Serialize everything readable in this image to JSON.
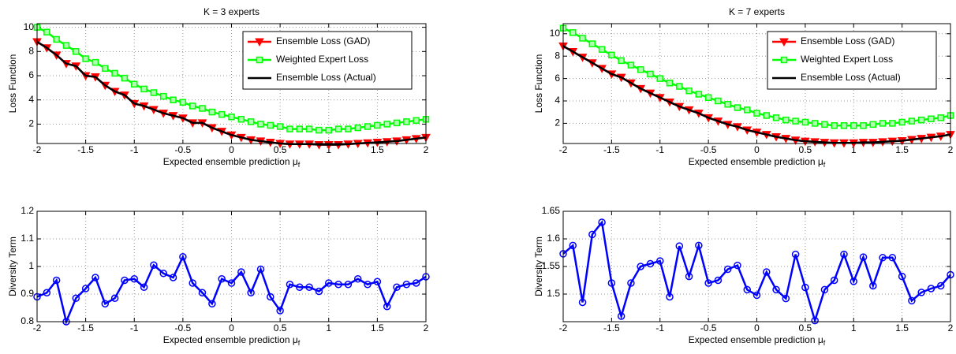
{
  "chart_data": [
    {
      "type": "line",
      "title": "K = 3 experts",
      "xlabel": [
        "Expected ensemble prediction μ",
        "f"
      ],
      "ylabel": "Loss Function",
      "xlim": [
        -2,
        2
      ],
      "ylim": [
        0.4,
        10.3
      ],
      "xticks": [
        -2,
        -1.5,
        -1,
        -0.5,
        0,
        0.5,
        1,
        1.5,
        2
      ],
      "yticks": [
        2,
        4,
        6,
        8,
        10
      ],
      "grid": true,
      "legend": "upper right",
      "x": [
        -2,
        -1.9,
        -1.8,
        -1.7,
        -1.6,
        -1.5,
        -1.4,
        -1.3,
        -1.2,
        -1.1,
        -1,
        -0.9,
        -0.8,
        -0.7,
        -0.6,
        -0.5,
        -0.4,
        -0.3,
        -0.2,
        -0.1,
        0,
        0.1,
        0.2,
        0.3,
        0.4,
        0.5,
        0.6,
        0.7,
        0.8,
        0.9,
        1,
        1.1,
        1.2,
        1.3,
        1.4,
        1.5,
        1.6,
        1.7,
        1.8,
        1.9,
        2
      ],
      "series": [
        {
          "name": "Ensemble Loss (GAD)",
          "color": "#ff0000",
          "marker": "v",
          "values": [
            8.8,
            8.3,
            7.7,
            7.0,
            6.8,
            6.0,
            5.9,
            5.2,
            4.7,
            4.4,
            3.7,
            3.5,
            3.2,
            2.9,
            2.7,
            2.5,
            2.1,
            2.1,
            1.7,
            1.4,
            1.1,
            0.9,
            0.7,
            0.6,
            0.5,
            0.4,
            0.35,
            0.35,
            0.35,
            0.3,
            0.3,
            0.3,
            0.35,
            0.4,
            0.45,
            0.5,
            0.55,
            0.6,
            0.7,
            0.8,
            0.9
          ]
        },
        {
          "name": "Weighted Expert Loss",
          "color": "#00ff00",
          "marker": "s",
          "values": [
            10,
            9.6,
            9.0,
            8.5,
            8.0,
            7.4,
            7.1,
            6.6,
            6.2,
            5.8,
            5.3,
            4.9,
            4.6,
            4.3,
            4.0,
            3.8,
            3.5,
            3.3,
            3.0,
            2.8,
            2.6,
            2.4,
            2.2,
            2.0,
            1.9,
            1.8,
            1.6,
            1.6,
            1.6,
            1.5,
            1.5,
            1.6,
            1.6,
            1.7,
            1.8,
            1.9,
            2.0,
            2.1,
            2.2,
            2.3,
            2.4
          ]
        },
        {
          "name": "Ensemble Loss (Actual)",
          "color": "#000000",
          "marker": "none",
          "values": [
            8.8,
            8.3,
            7.7,
            7.0,
            6.8,
            6.0,
            5.9,
            5.2,
            4.7,
            4.4,
            3.7,
            3.5,
            3.2,
            2.9,
            2.7,
            2.5,
            2.1,
            2.1,
            1.7,
            1.4,
            1.1,
            0.9,
            0.7,
            0.6,
            0.5,
            0.4,
            0.35,
            0.35,
            0.35,
            0.3,
            0.3,
            0.3,
            0.35,
            0.4,
            0.45,
            0.5,
            0.55,
            0.6,
            0.7,
            0.8,
            0.9
          ]
        }
      ]
    },
    {
      "type": "line",
      "title": "K = 7 experts",
      "xlabel": [
        "Expected ensemble prediction μ",
        "f"
      ],
      "ylabel": "Loss Function",
      "xlim": [
        -2,
        2
      ],
      "ylim": [
        0.2,
        10.9
      ],
      "xticks": [
        -2,
        -1.5,
        -1,
        -0.5,
        0,
        0.5,
        1,
        1.5,
        2
      ],
      "yticks": [
        2,
        4,
        6,
        8,
        10
      ],
      "grid": true,
      "legend": "upper right",
      "x": [
        -2,
        -1.9,
        -1.8,
        -1.7,
        -1.6,
        -1.5,
        -1.4,
        -1.3,
        -1.2,
        -1.1,
        -1,
        -0.9,
        -0.8,
        -0.7,
        -0.6,
        -0.5,
        -0.4,
        -0.3,
        -0.2,
        -0.1,
        0,
        0.1,
        0.2,
        0.3,
        0.4,
        0.5,
        0.6,
        0.7,
        0.8,
        0.9,
        1,
        1.1,
        1.2,
        1.3,
        1.4,
        1.5,
        1.6,
        1.7,
        1.8,
        1.9,
        2
      ],
      "series": [
        {
          "name": "Ensemble Loss (GAD)",
          "color": "#ff0000",
          "marker": "v",
          "values": [
            8.9,
            8.4,
            7.9,
            7.4,
            6.9,
            6.4,
            6.1,
            5.6,
            5.1,
            4.7,
            4.3,
            3.9,
            3.5,
            3.2,
            2.9,
            2.5,
            2.2,
            1.9,
            1.7,
            1.4,
            1.2,
            1.0,
            0.8,
            0.65,
            0.5,
            0.4,
            0.35,
            0.3,
            0.25,
            0.25,
            0.25,
            0.3,
            0.3,
            0.35,
            0.4,
            0.45,
            0.55,
            0.65,
            0.75,
            0.85,
            1.0
          ]
        },
        {
          "name": "Weighted Expert Loss",
          "color": "#00ff00",
          "marker": "s",
          "values": [
            10.5,
            10.1,
            9.6,
            9.1,
            8.6,
            8.1,
            7.6,
            7.2,
            6.8,
            6.4,
            6.0,
            5.6,
            5.3,
            4.9,
            4.6,
            4.3,
            4.0,
            3.7,
            3.4,
            3.2,
            2.9,
            2.7,
            2.5,
            2.3,
            2.2,
            2.1,
            2.0,
            1.9,
            1.8,
            1.8,
            1.8,
            1.8,
            1.9,
            2.0,
            2.0,
            2.1,
            2.2,
            2.3,
            2.4,
            2.5,
            2.7
          ]
        },
        {
          "name": "Ensemble Loss (Actual)",
          "color": "#000000",
          "marker": "none",
          "values": [
            8.9,
            8.4,
            7.9,
            7.4,
            6.9,
            6.4,
            6.1,
            5.6,
            5.1,
            4.7,
            4.3,
            3.9,
            3.5,
            3.2,
            2.9,
            2.5,
            2.2,
            1.9,
            1.7,
            1.4,
            1.2,
            1.0,
            0.8,
            0.65,
            0.5,
            0.4,
            0.35,
            0.3,
            0.25,
            0.25,
            0.25,
            0.3,
            0.3,
            0.35,
            0.4,
            0.45,
            0.55,
            0.65,
            0.75,
            0.85,
            1.0
          ]
        }
      ]
    },
    {
      "type": "line",
      "xlabel": [
        "Expected ensemble prediction μ",
        "f"
      ],
      "ylabel": "Diversity Term",
      "xlim": [
        -2,
        2
      ],
      "ylim": [
        0.8,
        1.2
      ],
      "xticks": [
        -2,
        -1.5,
        -1,
        -0.5,
        0,
        0.5,
        1,
        1.5,
        2
      ],
      "yticks": [
        0.8,
        0.9,
        1,
        1.1,
        1.2
      ],
      "grid": true,
      "x": [
        -2,
        -1.9,
        -1.8,
        -1.7,
        -1.6,
        -1.5,
        -1.4,
        -1.3,
        -1.2,
        -1.1,
        -1,
        -0.9,
        -0.8,
        -0.7,
        -0.6,
        -0.5,
        -0.4,
        -0.3,
        -0.2,
        -0.1,
        0,
        0.1,
        0.2,
        0.3,
        0.4,
        0.5,
        0.6,
        0.7,
        0.8,
        0.9,
        1,
        1.1,
        1.2,
        1.3,
        1.4,
        1.5,
        1.6,
        1.7,
        1.8,
        1.9,
        2
      ],
      "series": [
        {
          "color": "#0000ff",
          "marker": "o",
          "values": [
            0.89,
            0.905,
            0.95,
            0.8,
            0.885,
            0.92,
            0.96,
            0.865,
            0.885,
            0.95,
            0.955,
            0.925,
            1.005,
            0.975,
            0.96,
            1.035,
            0.94,
            0.905,
            0.865,
            0.955,
            0.94,
            0.98,
            0.905,
            0.99,
            0.89,
            0.84,
            0.935,
            0.925,
            0.925,
            0.91,
            0.94,
            0.935,
            0.935,
            0.955,
            0.935,
            0.945,
            0.855,
            0.925,
            0.935,
            0.94,
            0.963
          ]
        }
      ]
    },
    {
      "type": "line",
      "xlabel": [
        "Expected ensemble prediction μ",
        "f"
      ],
      "ylabel": "Diversity Term",
      "xlim": [
        -2,
        2
      ],
      "ylim": [
        1.45,
        1.65
      ],
      "xticks": [
        -2,
        -1.5,
        -1,
        -0.5,
        0,
        0.5,
        1,
        1.5,
        2
      ],
      "yticks": [
        1.5,
        1.55,
        1.6,
        1.65
      ],
      "grid": true,
      "x": [
        -2,
        -1.9,
        -1.8,
        -1.7,
        -1.6,
        -1.5,
        -1.4,
        -1.3,
        -1.2,
        -1.1,
        -1,
        -0.9,
        -0.8,
        -0.7,
        -0.6,
        -0.5,
        -0.4,
        -0.3,
        -0.2,
        -0.1,
        0,
        0.1,
        0.2,
        0.3,
        0.4,
        0.5,
        0.6,
        0.7,
        0.8,
        0.9,
        1,
        1.1,
        1.2,
        1.3,
        1.4,
        1.5,
        1.6,
        1.7,
        1.8,
        1.9,
        2
      ],
      "series": [
        {
          "color": "#0000ff",
          "marker": "o",
          "values": [
            1.573,
            1.588,
            1.485,
            1.608,
            1.63,
            1.52,
            1.46,
            1.52,
            1.55,
            1.555,
            1.56,
            1.495,
            1.587,
            1.532,
            1.588,
            1.52,
            1.525,
            1.545,
            1.552,
            1.508,
            1.498,
            1.54,
            1.508,
            1.492,
            1.572,
            1.512,
            1.452,
            1.508,
            1.525,
            1.572,
            1.523,
            1.567,
            1.515,
            1.566,
            1.566,
            1.532,
            1.488,
            1.503,
            1.51,
            1.515,
            1.535
          ]
        }
      ]
    }
  ]
}
